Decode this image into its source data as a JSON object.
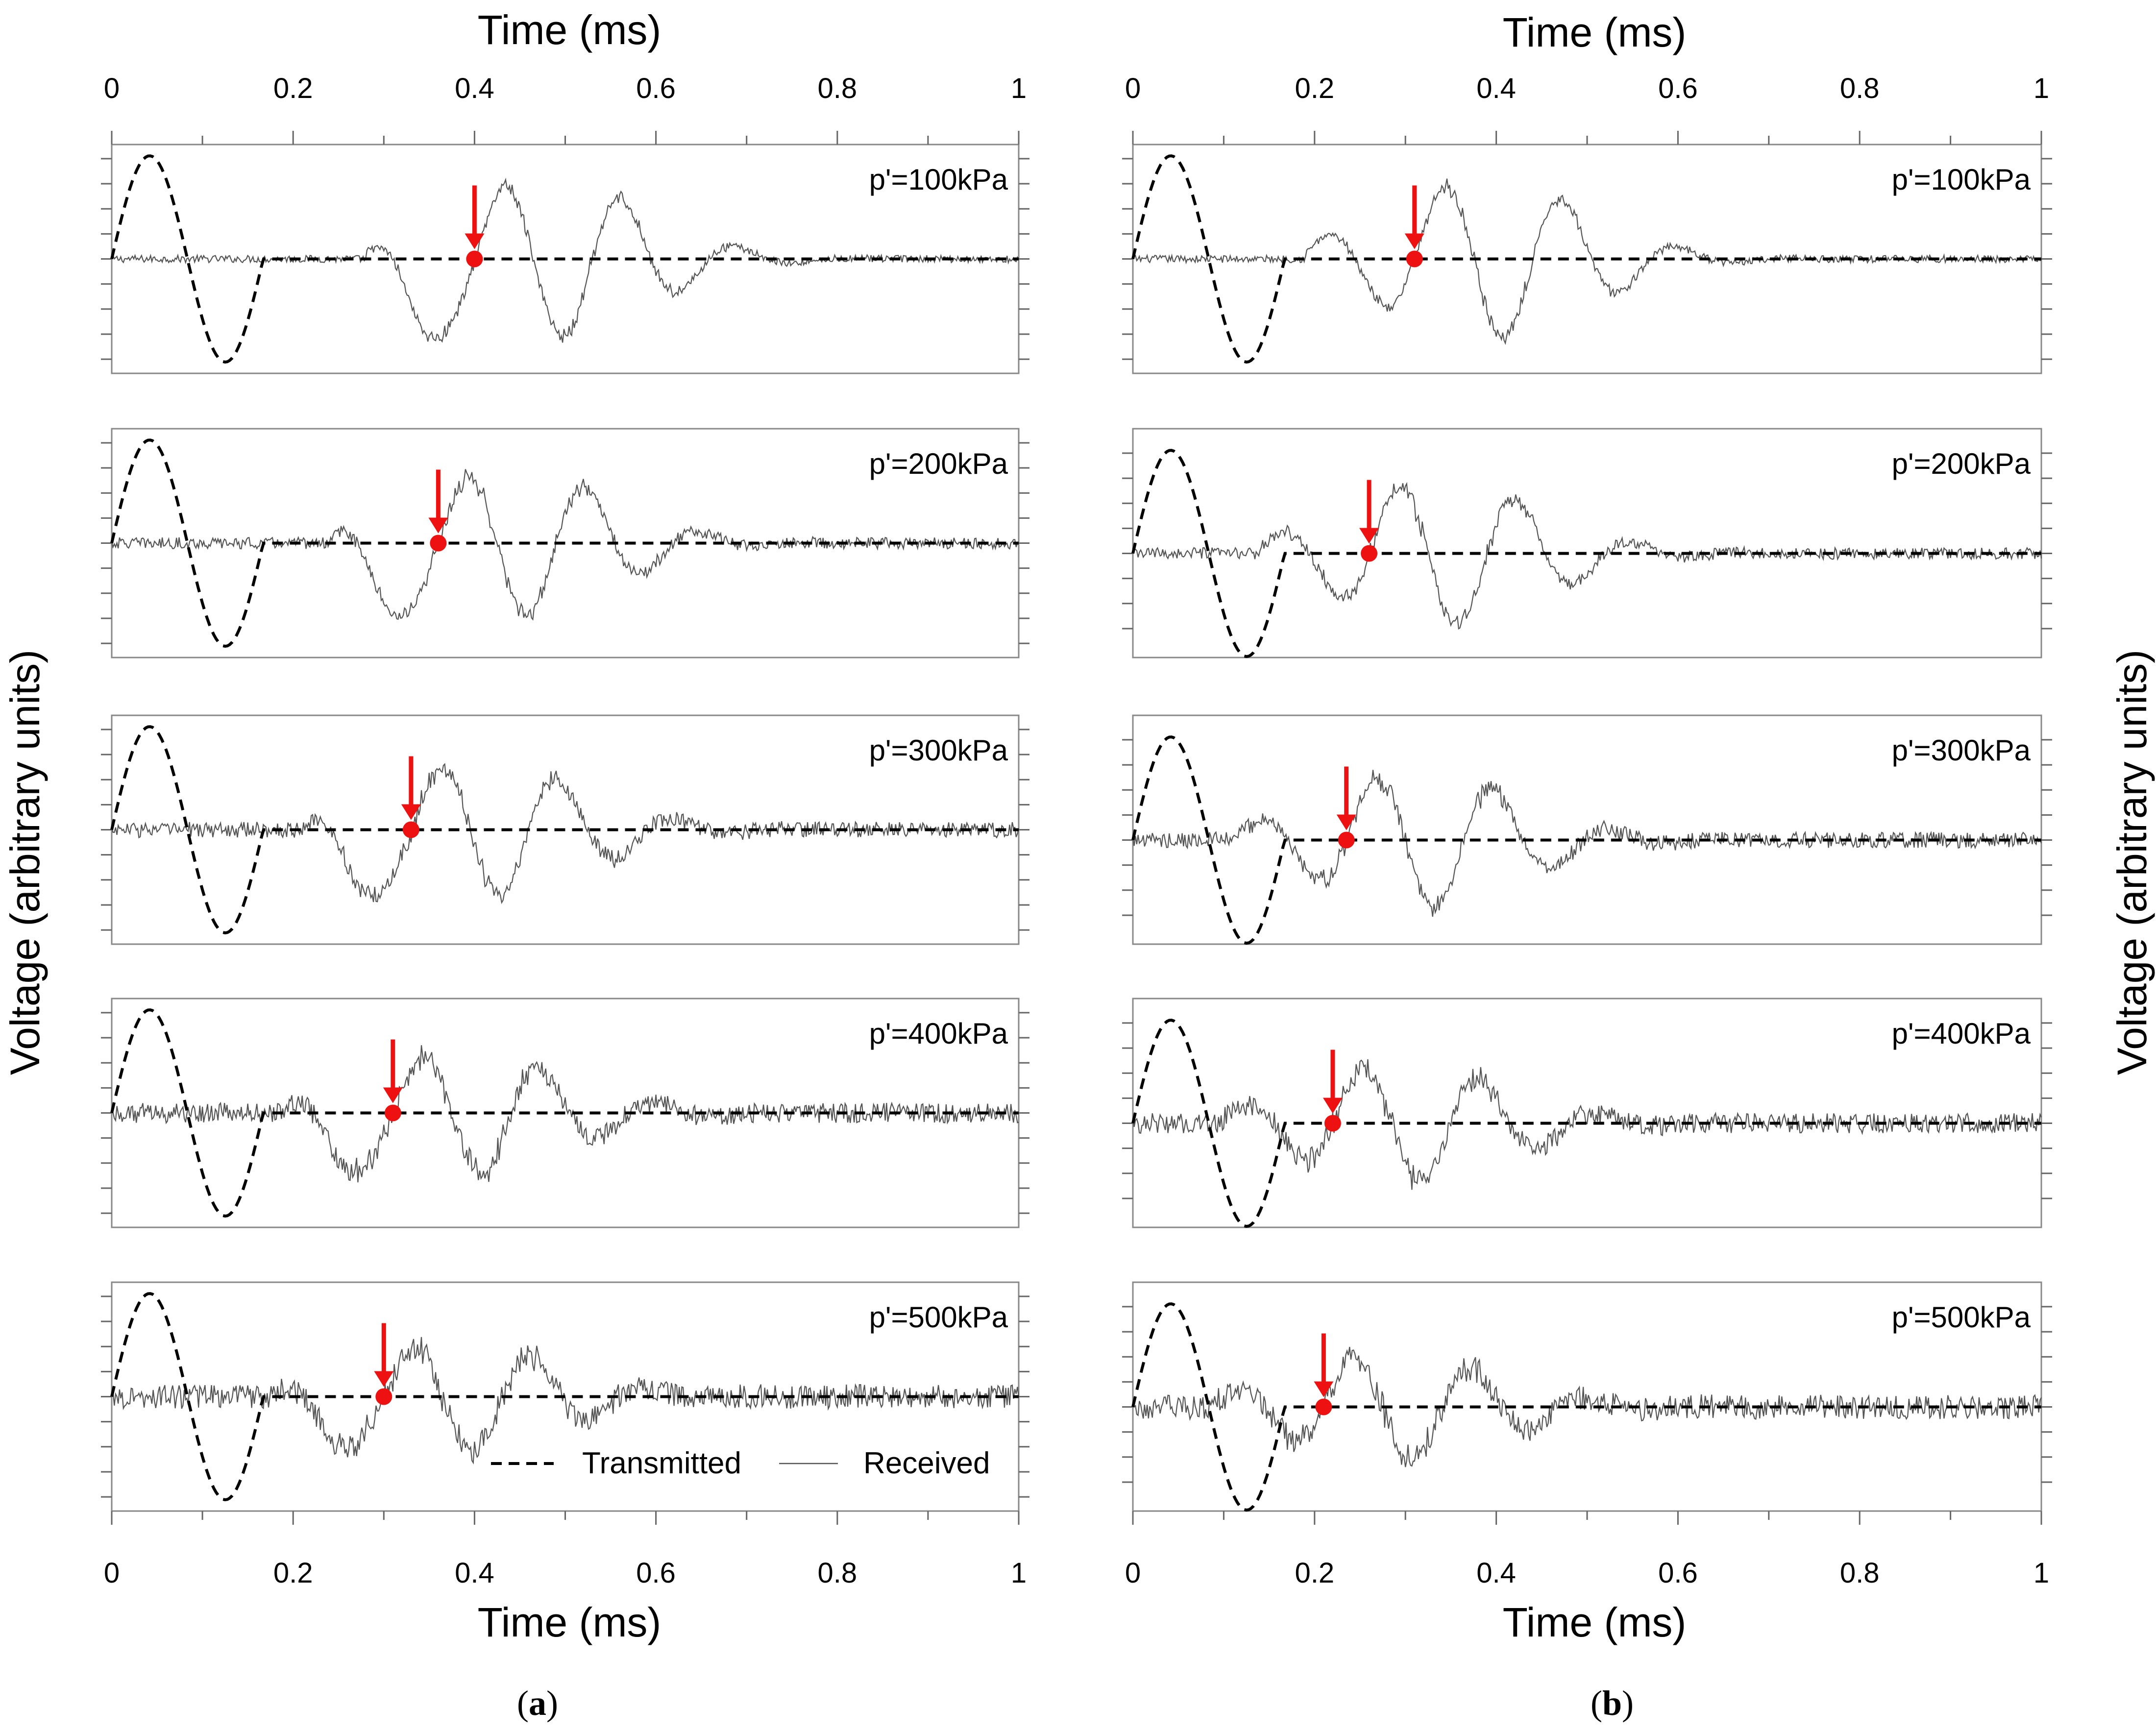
{
  "chart_data": {
    "type": "line",
    "x_axis_label": "Time (ms)",
    "y_axis_label": "Voltage (arbitrary units)",
    "xlim": [
      0,
      1
    ],
    "x_ticks": [
      "0",
      "0.2",
      "0.4",
      "0.6",
      "0.8",
      "1"
    ],
    "x_tick_values": [
      0,
      0.2,
      0.4,
      0.6,
      0.8,
      1
    ],
    "legend": {
      "transmitted": "Transmitted",
      "received": "Received",
      "placement": "bottom-right of last left panel"
    },
    "captions": {
      "a": "a",
      "b": "b"
    },
    "colors": {
      "marker": "#ee1111",
      "transmitted": "#000000",
      "received": "#555555",
      "frame": "#888888"
    },
    "transmitted_signal": {
      "description_period_ms": 0.167,
      "amplitude": 1.0,
      "start_ms": 0,
      "end_ms": 0.167
    },
    "columns": [
      {
        "caption": "a",
        "panels": [
          {
            "label": "p'=100kPa",
            "arrival_ms": 0.4,
            "received_peak_ms": 0.46,
            "received_trough_ms": 0.36
          },
          {
            "label": "p'=200kPa",
            "arrival_ms": 0.36,
            "received_peak_ms": 0.4,
            "received_trough_ms": 0.3
          },
          {
            "label": "p'=300kPa",
            "arrival_ms": 0.33,
            "received_peak_ms": 0.36,
            "received_trough_ms": 0.28
          },
          {
            "label": "p'=400kPa",
            "arrival_ms": 0.31,
            "received_peak_ms": 0.33,
            "received_trough_ms": 0.26
          },
          {
            "label": "p'=500kPa",
            "arrival_ms": 0.3,
            "received_peak_ms": 0.32,
            "received_trough_ms": 0.25
          }
        ]
      },
      {
        "caption": "b",
        "panels": [
          {
            "label": "p'=100kPa",
            "arrival_ms": 0.31,
            "received_peak_ms": 0.33,
            "received_trough_ms": 0.43
          },
          {
            "label": "p'=200kPa",
            "arrival_ms": 0.26,
            "received_peak_ms": 0.28,
            "received_trough_ms": 0.37
          },
          {
            "label": "p'=300kPa",
            "arrival_ms": 0.235,
            "received_peak_ms": 0.26,
            "received_trough_ms": 0.34
          },
          {
            "label": "p'=400kPa",
            "arrival_ms": 0.22,
            "received_peak_ms": 0.24,
            "received_trough_ms": 0.31
          },
          {
            "label": "p'=500kPa",
            "arrival_ms": 0.21,
            "received_peak_ms": 0.23,
            "received_trough_ms": 0.3
          }
        ]
      }
    ]
  }
}
